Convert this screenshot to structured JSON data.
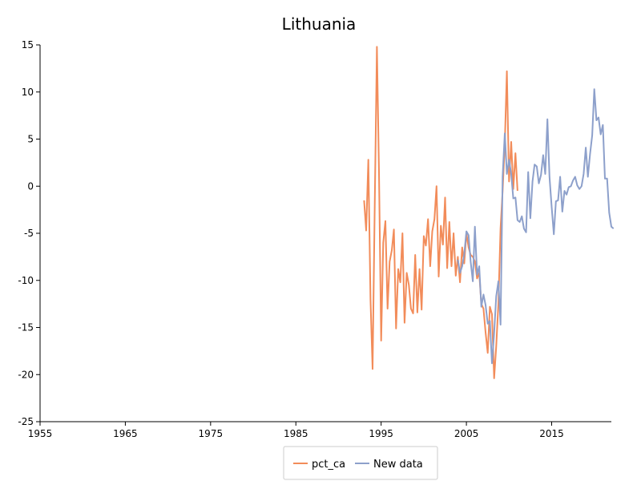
{
  "chart_data": {
    "type": "line",
    "title": "Lithuania",
    "xlabel": "",
    "ylabel": "",
    "xlim": [
      1955,
      2022
    ],
    "ylim": [
      -25,
      15
    ],
    "xticks": [
      1955,
      1965,
      1975,
      1985,
      1995,
      2005,
      2015
    ],
    "yticks": [
      15,
      10,
      5,
      0,
      -5,
      -10,
      -15,
      -20,
      -25
    ],
    "grid": false,
    "legend_position": "bottom-center",
    "series": [
      {
        "name": "pct_ca",
        "color": "#f28c5a",
        "points": [
          [
            1993.0,
            -1.5
          ],
          [
            1993.25,
            -4.7
          ],
          [
            1993.5,
            2.8
          ],
          [
            1993.75,
            -12.0
          ],
          [
            1994.0,
            -19.4
          ],
          [
            1994.25,
            -2.0
          ],
          [
            1994.5,
            14.8
          ],
          [
            1994.75,
            1.5
          ],
          [
            1995.0,
            -16.4
          ],
          [
            1995.25,
            -6.0
          ],
          [
            1995.5,
            -3.7
          ],
          [
            1995.75,
            -13.0
          ],
          [
            1996.0,
            -8.0
          ],
          [
            1996.25,
            -6.8
          ],
          [
            1996.5,
            -4.6
          ],
          [
            1996.75,
            -15.1
          ],
          [
            1997.0,
            -8.8
          ],
          [
            1997.25,
            -10.2
          ],
          [
            1997.5,
            -5.0
          ],
          [
            1997.75,
            -14.5
          ],
          [
            1998.0,
            -9.2
          ],
          [
            1998.25,
            -10.5
          ],
          [
            1998.5,
            -13.0
          ],
          [
            1998.75,
            -13.5
          ],
          [
            1999.0,
            -7.3
          ],
          [
            1999.25,
            -13.4
          ],
          [
            1999.5,
            -8.8
          ],
          [
            1999.75,
            -13.1
          ],
          [
            2000.0,
            -5.3
          ],
          [
            2000.25,
            -6.3
          ],
          [
            2000.5,
            -3.5
          ],
          [
            2000.75,
            -8.5
          ],
          [
            2001.0,
            -4.8
          ],
          [
            2001.25,
            -3.5
          ],
          [
            2001.5,
            0.0
          ],
          [
            2001.75,
            -9.6
          ],
          [
            2002.0,
            -4.2
          ],
          [
            2002.25,
            -6.2
          ],
          [
            2002.5,
            -1.2
          ],
          [
            2002.75,
            -8.7
          ],
          [
            2003.0,
            -3.8
          ],
          [
            2003.25,
            -8.5
          ],
          [
            2003.5,
            -5.0
          ],
          [
            2003.75,
            -9.5
          ],
          [
            2004.0,
            -7.5
          ],
          [
            2004.25,
            -10.2
          ],
          [
            2004.5,
            -6.5
          ],
          [
            2004.75,
            -8.2
          ],
          [
            2005.0,
            -5.0
          ],
          [
            2005.25,
            -6.5
          ],
          [
            2005.5,
            -7.3
          ],
          [
            2005.75,
            -7.5
          ],
          [
            2006.0,
            -8.0
          ],
          [
            2006.25,
            -9.8
          ],
          [
            2006.5,
            -9.2
          ],
          [
            2006.75,
            -12.5
          ],
          [
            2007.0,
            -13.0
          ],
          [
            2007.25,
            -15.5
          ],
          [
            2007.5,
            -17.7
          ],
          [
            2007.75,
            -12.8
          ],
          [
            2008.0,
            -13.6
          ],
          [
            2008.25,
            -20.4
          ],
          [
            2008.5,
            -17.0
          ],
          [
            2008.75,
            -12.5
          ],
          [
            2009.0,
            -4.5
          ],
          [
            2009.25,
            -0.5
          ],
          [
            2009.5,
            4.5
          ],
          [
            2009.75,
            12.2
          ],
          [
            2010.0,
            0.5
          ],
          [
            2010.25,
            4.7
          ],
          [
            2010.5,
            -0.3
          ],
          [
            2010.75,
            3.5
          ],
          [
            2011.0,
            -0.5
          ]
        ]
      },
      {
        "name": "New data",
        "color": "#8da0cb",
        "points": [
          [
            2004.0,
            -7.8
          ],
          [
            2004.25,
            -9.2
          ],
          [
            2004.5,
            -8.5
          ],
          [
            2004.75,
            -7.2
          ],
          [
            2005.0,
            -4.8
          ],
          [
            2005.25,
            -5.2
          ],
          [
            2005.5,
            -8.0
          ],
          [
            2005.75,
            -10.1
          ],
          [
            2006.0,
            -4.3
          ],
          [
            2006.25,
            -9.4
          ],
          [
            2006.5,
            -8.5
          ],
          [
            2006.75,
            -12.8
          ],
          [
            2007.0,
            -11.5
          ],
          [
            2007.25,
            -12.6
          ],
          [
            2007.5,
            -14.6
          ],
          [
            2007.75,
            -14.3
          ],
          [
            2008.0,
            -18.8
          ],
          [
            2008.25,
            -15.6
          ],
          [
            2008.5,
            -11.7
          ],
          [
            2008.75,
            -10.1
          ],
          [
            2009.0,
            -14.7
          ],
          [
            2009.25,
            1.0
          ],
          [
            2009.5,
            5.6
          ],
          [
            2009.75,
            1.3
          ],
          [
            2010.0,
            2.8
          ],
          [
            2010.25,
            1.3
          ],
          [
            2010.5,
            -1.3
          ],
          [
            2010.75,
            -1.2
          ],
          [
            2011.0,
            -3.6
          ],
          [
            2011.25,
            -3.8
          ],
          [
            2011.5,
            -3.2
          ],
          [
            2011.75,
            -4.5
          ],
          [
            2012.0,
            -4.9
          ],
          [
            2012.25,
            1.5
          ],
          [
            2012.5,
            -3.4
          ],
          [
            2012.75,
            0.5
          ],
          [
            2013.0,
            2.3
          ],
          [
            2013.25,
            2.1
          ],
          [
            2013.5,
            0.3
          ],
          [
            2013.75,
            1.2
          ],
          [
            2014.0,
            3.3
          ],
          [
            2014.25,
            1.3
          ],
          [
            2014.5,
            7.1
          ],
          [
            2014.75,
            1.0
          ],
          [
            2015.0,
            -2.2
          ],
          [
            2015.25,
            -5.1
          ],
          [
            2015.5,
            -1.6
          ],
          [
            2015.75,
            -1.5
          ],
          [
            2016.0,
            1.0
          ],
          [
            2016.25,
            -2.7
          ],
          [
            2016.5,
            -0.5
          ],
          [
            2016.75,
            -0.9
          ],
          [
            2017.0,
            -0.1
          ],
          [
            2017.25,
            0.0
          ],
          [
            2017.5,
            0.6
          ],
          [
            2017.75,
            1.0
          ],
          [
            2018.0,
            0.1
          ],
          [
            2018.25,
            -0.3
          ],
          [
            2018.5,
            0.0
          ],
          [
            2018.75,
            1.3
          ],
          [
            2019.0,
            4.1
          ],
          [
            2019.25,
            1.0
          ],
          [
            2019.5,
            3.4
          ],
          [
            2019.75,
            5.4
          ],
          [
            2020.0,
            10.3
          ],
          [
            2020.25,
            7.0
          ],
          [
            2020.5,
            7.3
          ],
          [
            2020.75,
            5.5
          ],
          [
            2021.0,
            6.5
          ],
          [
            2021.25,
            0.8
          ],
          [
            2021.5,
            0.8
          ],
          [
            2021.75,
            -2.8
          ],
          [
            2022.0,
            -4.3
          ],
          [
            2022.25,
            -4.5
          ]
        ]
      }
    ]
  }
}
